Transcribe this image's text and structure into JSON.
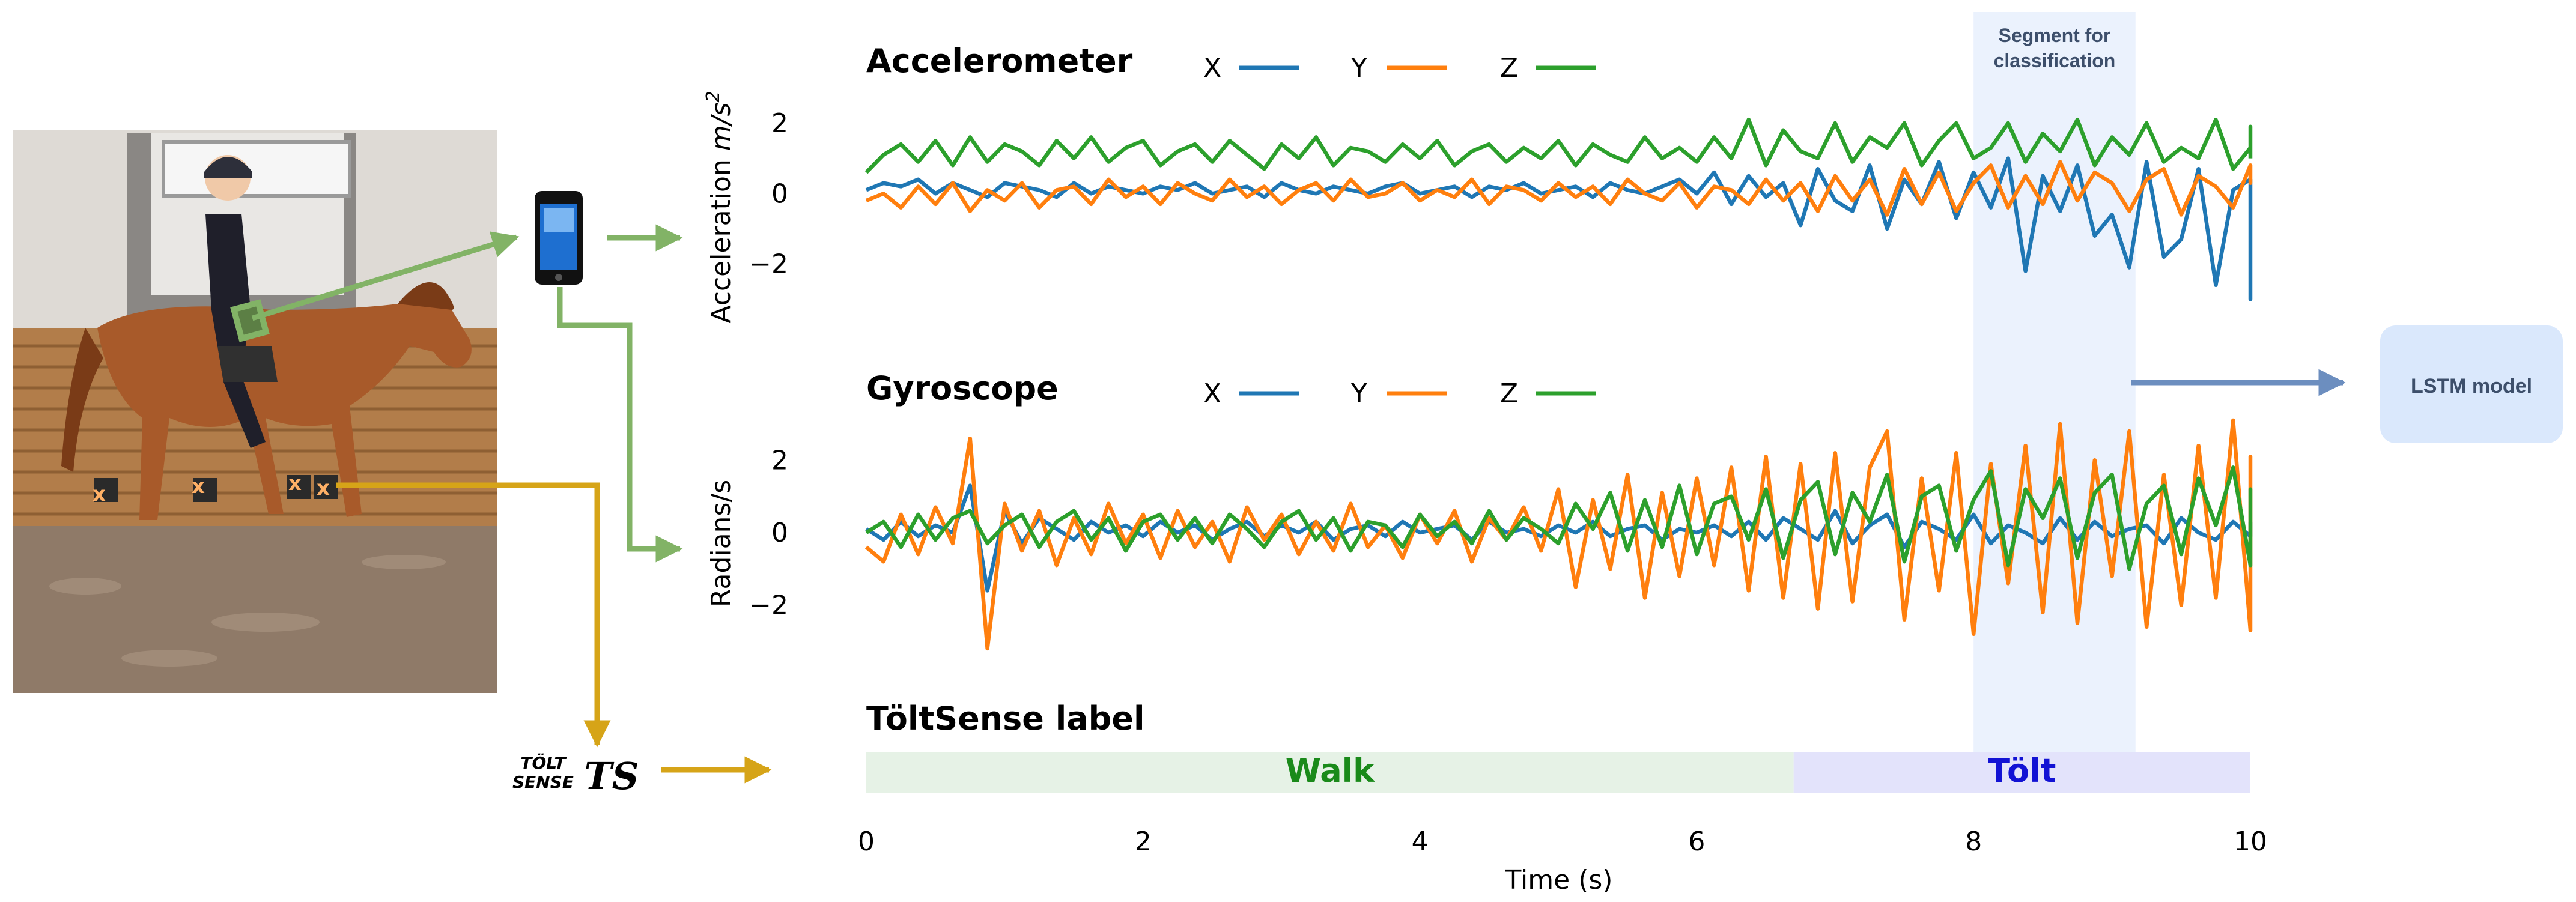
{
  "chart_data": [
    {
      "type": "line",
      "title": "Accelerometer",
      "ylabel_prefix": "Acceleration ",
      "ylabel_unit": "m/s",
      "ylabel_exp": "2",
      "yticks": [
        2,
        0,
        -2
      ],
      "ylim": [
        -3.2,
        2.8
      ],
      "xlim": [
        0,
        10
      ],
      "series": [
        {
          "name": "X",
          "color": "#1f77b4",
          "x_step": 0.125,
          "values": [
            0.1,
            0.3,
            0.2,
            0.4,
            0.0,
            0.3,
            0.1,
            -0.1,
            0.3,
            0.2,
            0.1,
            -0.1,
            0.3,
            0.0,
            0.2,
            0.1,
            0.0,
            0.2,
            0.1,
            0.3,
            0.0,
            0.1,
            0.2,
            -0.1,
            0.3,
            0.1,
            0.0,
            0.2,
            0.1,
            0.0,
            0.2,
            0.3,
            0.0,
            0.1,
            0.2,
            -0.1,
            0.2,
            0.1,
            0.3,
            0.0,
            0.1,
            0.2,
            -0.1,
            0.3,
            0.1,
            0.0,
            0.2,
            0.4,
            0.0,
            0.6,
            -0.3,
            0.5,
            -0.1,
            0.3,
            -0.9,
            0.7,
            -0.2,
            -0.5,
            0.8,
            -1.0,
            0.4,
            -0.3,
            0.9,
            -0.7,
            0.6,
            -0.4,
            1.0,
            -2.2,
            0.5,
            -0.5,
            0.8,
            -1.2,
            -0.6,
            -2.1,
            0.9,
            -1.8,
            -1.3,
            0.7,
            -2.6,
            0.1,
            0.4,
            0.2,
            -3.0,
            0.1
          ]
        },
        {
          "name": "Y",
          "color": "#ff7f0e",
          "x_step": 0.125,
          "values": [
            -0.2,
            0.0,
            -0.4,
            0.2,
            -0.3,
            0.3,
            -0.5,
            0.1,
            -0.2,
            0.3,
            -0.4,
            0.1,
            0.2,
            -0.3,
            0.4,
            -0.1,
            0.2,
            -0.3,
            0.3,
            0.0,
            -0.2,
            0.4,
            -0.1,
            0.2,
            -0.3,
            0.1,
            0.3,
            -0.2,
            0.4,
            -0.1,
            0.0,
            0.3,
            -0.2,
            0.1,
            -0.1,
            0.4,
            -0.3,
            0.2,
            0.1,
            -0.2,
            0.3,
            -0.1,
            0.2,
            -0.3,
            0.4,
            0.0,
            -0.2,
            0.3,
            -0.4,
            0.2,
            0.1,
            -0.3,
            0.4,
            -0.2,
            0.3,
            -0.5,
            0.5,
            -0.2,
            0.4,
            -0.6,
            0.7,
            -0.3,
            0.6,
            -0.5,
            0.3,
            0.8,
            -0.4,
            0.5,
            -0.3,
            0.9,
            -0.2,
            0.6,
            0.3,
            -0.5,
            0.4,
            0.7,
            -0.6,
            0.5,
            0.2,
            -0.4,
            0.8,
            0.3,
            0.5,
            0.3
          ]
        },
        {
          "name": "Z",
          "color": "#2ca02c",
          "x_step": 0.125,
          "values": [
            0.6,
            1.1,
            1.4,
            0.9,
            1.5,
            0.8,
            1.6,
            0.9,
            1.4,
            1.2,
            0.8,
            1.5,
            1.0,
            1.6,
            0.9,
            1.3,
            1.5,
            0.8,
            1.2,
            1.4,
            0.9,
            1.5,
            1.1,
            0.7,
            1.4,
            1.0,
            1.6,
            0.8,
            1.3,
            1.2,
            0.9,
            1.4,
            1.0,
            1.5,
            0.8,
            1.2,
            1.4,
            0.9,
            1.3,
            1.0,
            1.5,
            0.8,
            1.4,
            1.1,
            0.9,
            1.6,
            1.0,
            1.3,
            0.9,
            1.6,
            1.0,
            2.1,
            0.8,
            1.8,
            1.2,
            1.0,
            2.0,
            0.9,
            1.6,
            1.3,
            2.0,
            0.8,
            1.5,
            2.0,
            1.0,
            1.3,
            2.0,
            0.9,
            1.7,
            1.2,
            2.1,
            0.8,
            1.6,
            1.1,
            2.0,
            0.9,
            1.3,
            1.0,
            2.1,
            0.7,
            1.3,
            1.9,
            1.5,
            1.0
          ]
        }
      ]
    },
    {
      "type": "line",
      "title": "Gyroscope",
      "ylabel": "Radians/s",
      "yticks": [
        2,
        0,
        -2
      ],
      "ylim": [
        -3.4,
        3.1
      ],
      "xlim": [
        0,
        10
      ],
      "series": [
        {
          "name": "X",
          "color": "#1f77b4",
          "x_step": 0.125,
          "values": [
            0.1,
            -0.2,
            0.3,
            -0.1,
            0.2,
            0.0,
            1.3,
            -1.6,
            0.6,
            -0.3,
            0.4,
            0.1,
            -0.2,
            0.3,
            0.0,
            0.2,
            -0.1,
            0.3,
            0.0,
            0.2,
            -0.2,
            0.1,
            0.3,
            -0.1,
            0.2,
            0.0,
            0.3,
            -0.2,
            0.1,
            0.2,
            -0.1,
            0.3,
            0.0,
            0.1,
            0.2,
            -0.2,
            0.3,
            0.0,
            0.1,
            -0.1,
            0.2,
            0.0,
            0.3,
            -0.1,
            0.1,
            0.2,
            -0.2,
            0.1,
            0.0,
            0.2,
            -0.1,
            0.3,
            -0.2,
            0.4,
            0.1,
            -0.2,
            0.6,
            -0.3,
            0.2,
            0.5,
            -0.4,
            0.3,
            0.1,
            -0.2,
            0.5,
            -0.3,
            0.2,
            0.0,
            -0.3,
            0.4,
            -0.2,
            0.3,
            -0.1,
            0.1,
            0.2,
            -0.3,
            0.4,
            0.0,
            -0.2,
            0.3,
            -0.1,
            0.2,
            0.1,
            0.3
          ]
        },
        {
          "name": "Y",
          "color": "#ff7f0e",
          "x_step": 0.125,
          "values": [
            -0.4,
            -0.8,
            0.5,
            -0.6,
            0.7,
            -0.3,
            2.6,
            -3.2,
            0.8,
            -0.5,
            0.6,
            -0.9,
            0.4,
            -0.6,
            0.8,
            -0.3,
            0.5,
            -0.7,
            0.6,
            -0.4,
            0.3,
            -0.8,
            0.7,
            -0.2,
            0.5,
            -0.6,
            0.3,
            -0.5,
            0.8,
            -0.4,
            0.2,
            -0.7,
            0.5,
            -0.3,
            0.6,
            -0.8,
            0.4,
            -0.2,
            0.7,
            -0.5,
            1.2,
            -1.5,
            0.9,
            -1.0,
            1.6,
            -1.8,
            1.1,
            -1.2,
            1.5,
            -0.9,
            1.8,
            -1.6,
            2.1,
            -1.8,
            1.9,
            -2.1,
            2.2,
            -1.9,
            1.8,
            2.8,
            -2.4,
            1.5,
            -1.6,
            2.2,
            -2.8,
            1.9,
            -1.4,
            2.4,
            -2.2,
            3.0,
            -2.5,
            2.0,
            -1.2,
            2.8,
            -2.6,
            1.6,
            -2.0,
            2.4,
            -1.8,
            3.1,
            -2.7,
            2.1,
            -0.8,
            1.1
          ]
        },
        {
          "name": "Z",
          "color": "#2ca02c",
          "x_step": 0.125,
          "values": [
            0.0,
            0.3,
            -0.4,
            0.5,
            -0.2,
            0.4,
            0.6,
            -0.3,
            0.2,
            0.5,
            -0.4,
            0.3,
            0.6,
            -0.2,
            0.4,
            -0.5,
            0.3,
            0.5,
            -0.2,
            0.4,
            -0.3,
            0.5,
            0.1,
            -0.4,
            0.3,
            0.6,
            -0.2,
            0.4,
            -0.5,
            0.3,
            0.2,
            -0.4,
            0.5,
            -0.1,
            0.3,
            -0.3,
            0.6,
            -0.2,
            0.4,
            0.1,
            -0.3,
            0.8,
            0.1,
            1.1,
            -0.5,
            0.9,
            -0.4,
            1.3,
            -0.6,
            0.8,
            1.0,
            -0.2,
            1.2,
            -0.7,
            0.9,
            1.4,
            -0.6,
            1.1,
            0.3,
            1.6,
            -0.8,
            1.0,
            1.3,
            -0.5,
            0.9,
            1.7,
            -0.9,
            1.2,
            0.4,
            1.5,
            -0.7,
            1.1,
            1.6,
            -1.0,
            0.8,
            1.3,
            -0.6,
            1.5,
            0.2,
            1.8,
            -0.9,
            1.2,
            0.5,
            0.7
          ]
        }
      ]
    },
    {
      "type": "bar",
      "title": "TöltSense label",
      "xlabel": "Time (s)",
      "xticks": [
        "0",
        "2",
        "4",
        "6",
        "8",
        "10"
      ],
      "segments": [
        {
          "label": "Walk",
          "start": 0,
          "end": 6.7,
          "fill": "#e6f2e6",
          "text_color": "#1a8a1a"
        },
        {
          "label": "Tölt",
          "start": 6.7,
          "end": 10,
          "fill": "#e3e3fb",
          "text_color": "#1212d4"
        }
      ]
    }
  ],
  "legend_labels": [
    "X",
    "Y",
    "Z"
  ],
  "highlight": {
    "label_line1": "Segment for",
    "label_line2": "classification",
    "start": 8.0,
    "end": 9.17
  },
  "model": {
    "label": "LSTM model"
  },
  "logo": {
    "line1": "TÖLT",
    "line2": "SENSE",
    "mark": "TS"
  },
  "colors": {
    "arrow_green": "#82b366",
    "arrow_gold": "#d6a418",
    "arrow_blue": "#6c8ebf",
    "model_fill": "#dae8fc",
    "highlight_fill": "#dae8fc"
  }
}
